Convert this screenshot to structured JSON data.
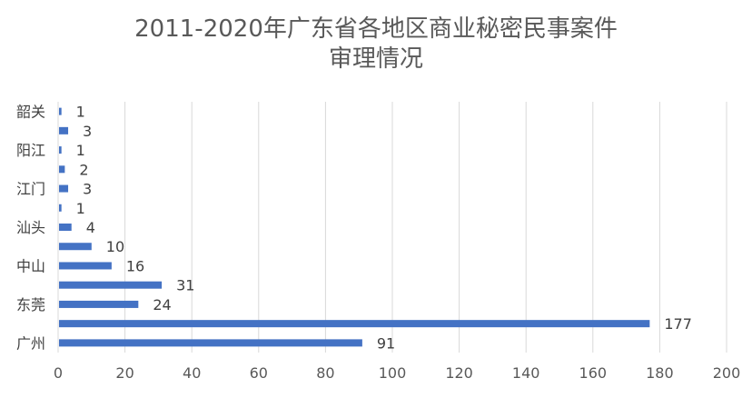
{
  "chart_data": {
    "type": "bar",
    "orientation": "horizontal",
    "title_line1": "2011-2020年广东省各地区商业秘密民事案件",
    "title_line2": "审理情况",
    "categories": [
      "韶关",
      "",
      "阳江",
      "",
      "江门",
      "",
      "汕头",
      "",
      "中山",
      "",
      "东莞",
      "",
      "广州"
    ],
    "values": [
      1,
      3,
      1,
      2,
      3,
      1,
      4,
      10,
      16,
      31,
      24,
      177,
      91
    ],
    "xlim": [
      0,
      200
    ],
    "xticks": [
      "0",
      "20",
      "40",
      "60",
      "80",
      "100",
      "120",
      "140",
      "160",
      "180",
      "200"
    ],
    "grid": true,
    "legend": "none",
    "bar_color": "#4472C4"
  }
}
